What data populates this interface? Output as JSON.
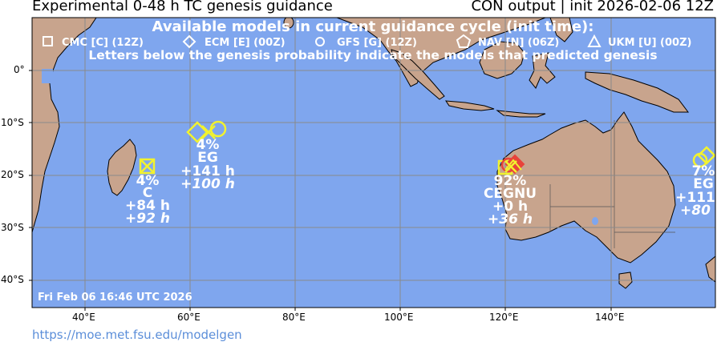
{
  "header": {
    "title_left": "Experimental 0-48 h TC genesis guidance",
    "title_right": "CON output | init 2026-02-06 12Z"
  },
  "legend": {
    "heading": "Available models in current guidance cycle (init time):",
    "models": [
      {
        "symbol": "square-icon",
        "label": "CMC [C] (12Z)"
      },
      {
        "symbol": "diamond-icon",
        "label": "ECM [E] (00Z)"
      },
      {
        "symbol": "circle-icon",
        "label": "GFS [G] (12Z)"
      },
      {
        "symbol": "pentagon-icon",
        "label": "NAV [N] (06Z)"
      },
      {
        "symbol": "triangle-icon",
        "label": "UKM [U] (00Z)"
      }
    ],
    "note": "Letters below the genesis probability indicate the models that predicted genesis"
  },
  "axes": {
    "lat_labels": [
      "0°",
      "10°S",
      "20°S",
      "30°S",
      "40°S"
    ],
    "lon_labels": [
      "40°E",
      "60°E",
      "80°E",
      "100°E",
      "120°E",
      "140°E"
    ]
  },
  "areas": [
    {
      "prob": "4%",
      "models": "C",
      "t1": "+84 h",
      "t2": "+92 h"
    },
    {
      "prob": "4%",
      "models": "EG",
      "t1": "+141 h",
      "t2": "+100 h"
    },
    {
      "prob": "92%",
      "models": "CEGNU",
      "t1": "+0 h",
      "t2": "+36 h"
    },
    {
      "prob": "7%",
      "models": "EG",
      "t1": "+111",
      "t2": "+80"
    }
  ],
  "timestamp": "Fri Feb 06 16:46 UTC 2026",
  "footer_url": "https://moe.met.fsu.edu/modelgen",
  "colors": {
    "ocean": "#7fa6ee",
    "land": "#c8a48d",
    "marker_yellow": "#f2f22e",
    "marker_red": "#e8433a",
    "url": "#5b8ed9"
  }
}
